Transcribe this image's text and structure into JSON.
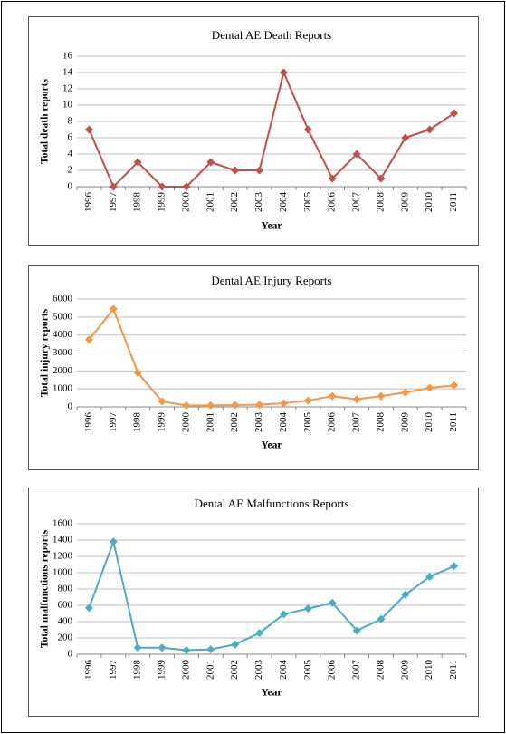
{
  "chart_data": [
    {
      "type": "line",
      "title": "Dental AE Death Reports",
      "x_label": "Year",
      "y_label": "Total death reports",
      "categories": [
        "1996",
        "1997",
        "1998",
        "1999",
        "2000",
        "2001",
        "2002",
        "2003",
        "2004",
        "2005",
        "2006",
        "2007",
        "2008",
        "2009",
        "2010",
        "2011"
      ],
      "series": [
        {
          "name": "Death",
          "color": "#c0504d",
          "values": [
            7,
            0,
            3,
            0,
            0,
            3,
            2,
            2,
            14,
            7,
            1,
            4,
            1,
            6,
            7,
            9
          ]
        }
      ],
      "ylim": [
        0,
        16
      ],
      "yticks": [
        0,
        2,
        4,
        6,
        8,
        10,
        12,
        14,
        16
      ],
      "grid": true
    },
    {
      "type": "line",
      "title": "Dental AE Injury Reports",
      "x_label": "Year",
      "y_label": "Total injury reports",
      "categories": [
        "1996",
        "1997",
        "1998",
        "1999",
        "2000",
        "2001",
        "2002",
        "2003",
        "2004",
        "2005",
        "2006",
        "2007",
        "2008",
        "2009",
        "2010",
        "2011"
      ],
      "series": [
        {
          "name": "Injury",
          "color": "#f79646",
          "values": [
            3750,
            5450,
            1900,
            300,
            80,
            80,
            100,
            120,
            200,
            350,
            600,
            420,
            600,
            800,
            1050,
            1200
          ]
        }
      ],
      "ylim": [
        0,
        6000
      ],
      "yticks": [
        0,
        1000,
        2000,
        3000,
        4000,
        5000,
        6000
      ],
      "grid": true
    },
    {
      "type": "line",
      "title": "Dental AE Malfunctions Reports",
      "x_label": "Year",
      "y_label": "Total malfunctions reports",
      "categories": [
        "1996",
        "1997",
        "1998",
        "1999",
        "2000",
        "2001",
        "2002",
        "2003",
        "2004",
        "2005",
        "2006",
        "2007",
        "2008",
        "2009",
        "2010",
        "2011"
      ],
      "series": [
        {
          "name": "Malfunctions",
          "color": "#4bacc6",
          "values": [
            570,
            1380,
            80,
            80,
            50,
            60,
            120,
            260,
            490,
            560,
            630,
            290,
            430,
            730,
            950,
            1080
          ]
        }
      ],
      "ylim": [
        0,
        1600
      ],
      "yticks": [
        0,
        200,
        400,
        600,
        800,
        1000,
        1200,
        1400,
        1600
      ],
      "grid": true
    }
  ]
}
